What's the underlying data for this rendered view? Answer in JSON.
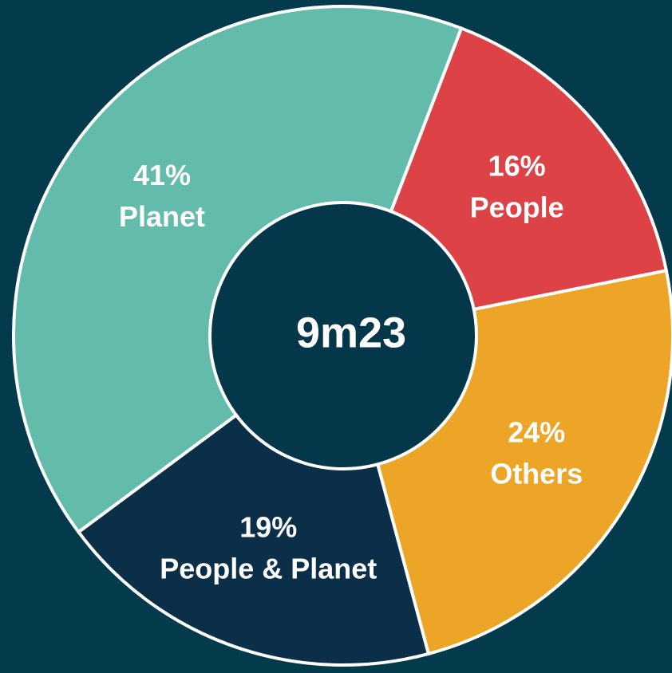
{
  "chart_data": {
    "type": "donut",
    "center_label": "9m23",
    "categories": [
      "People",
      "Others",
      "People & Planet",
      "Planet"
    ],
    "values": [
      16,
      24,
      19,
      41
    ],
    "value_labels": [
      "16%",
      "24%",
      "19%",
      "41%"
    ],
    "colors": [
      "#dd4346",
      "#eca526",
      "#0b2f48",
      "#63bcab"
    ]
  }
}
